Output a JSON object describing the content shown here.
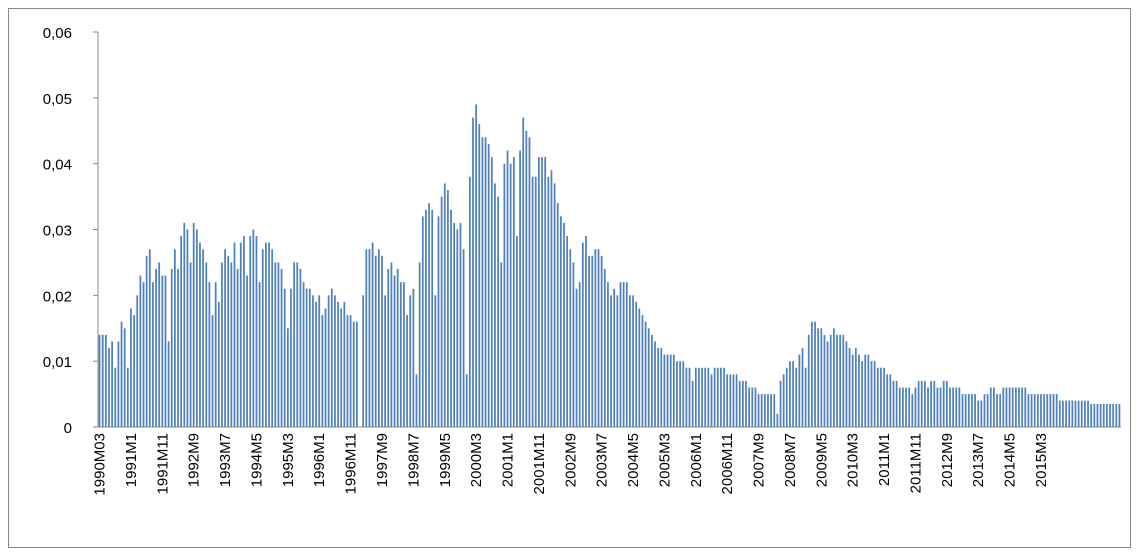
{
  "chart_data": {
    "type": "bar",
    "color": "#4f81bd",
    "grid": false,
    "ylim": [
      0,
      0.06
    ],
    "yticks": [
      0,
      {
        "value": 0.01,
        "label": "0,01"
      },
      {
        "value": 0.02,
        "label": "0,02"
      },
      {
        "value": 0.03,
        "label": "0,03"
      },
      {
        "value": 0.04,
        "label": "0,04"
      },
      {
        "value": 0.05,
        "label": "0,05"
      },
      {
        "value": 0.06,
        "label": "0,06"
      }
    ],
    "categories": [
      "1990M03",
      null,
      null,
      null,
      null,
      null,
      null,
      null,
      null,
      null,
      "1991M1",
      null,
      null,
      null,
      null,
      null,
      null,
      null,
      null,
      null,
      "1991M11",
      null,
      null,
      null,
      null,
      null,
      null,
      null,
      null,
      null,
      "1992M9",
      null,
      null,
      null,
      null,
      null,
      null,
      null,
      null,
      null,
      "1993M7",
      null,
      null,
      null,
      null,
      null,
      null,
      null,
      null,
      null,
      "1994M5",
      null,
      null,
      null,
      null,
      null,
      null,
      null,
      null,
      null,
      "1995M3",
      null,
      null,
      null,
      null,
      null,
      null,
      null,
      null,
      null,
      "1996M1",
      null,
      null,
      null,
      null,
      null,
      null,
      null,
      null,
      null,
      "1996M11",
      null,
      null,
      null,
      null,
      null,
      null,
      null,
      null,
      null,
      "1997M9",
      null,
      null,
      null,
      null,
      null,
      null,
      null,
      null,
      null,
      "1998M7",
      null,
      null,
      null,
      null,
      null,
      null,
      null,
      null,
      null,
      "1999M5",
      null,
      null,
      null,
      null,
      null,
      null,
      null,
      null,
      null,
      "2000M3",
      null,
      null,
      null,
      null,
      null,
      null,
      null,
      null,
      null,
      "2001M1",
      null,
      null,
      null,
      null,
      null,
      null,
      null,
      null,
      null,
      "2001M11",
      null,
      null,
      null,
      null,
      null,
      null,
      null,
      null,
      null,
      "2002M9",
      null,
      null,
      null,
      null,
      null,
      null,
      null,
      null,
      null,
      "2003M7",
      null,
      null,
      null,
      null,
      null,
      null,
      null,
      null,
      null,
      "2004M5",
      null,
      null,
      null,
      null,
      null,
      null,
      null,
      null,
      null,
      "2005M3",
      null,
      null,
      null,
      null,
      null,
      null,
      null,
      null,
      null,
      "2006M1",
      null,
      null,
      null,
      null,
      null,
      null,
      null,
      null,
      null,
      "2006M11",
      null,
      null,
      null,
      null,
      null,
      null,
      null,
      null,
      null,
      "2007M9",
      null,
      null,
      null,
      null,
      null,
      null,
      null,
      null,
      null,
      "2008M7",
      null,
      null,
      null,
      null,
      null,
      null,
      null,
      null,
      null,
      "2009M5",
      null,
      null,
      null,
      null,
      null,
      null,
      null,
      null,
      null,
      "2010M3",
      null,
      null,
      null,
      null,
      null,
      null,
      null,
      null,
      null,
      "2011M1",
      null,
      null,
      null,
      null,
      null,
      null,
      null,
      null,
      null,
      "2011M11",
      null,
      null,
      null,
      null,
      null,
      null,
      null,
      null,
      null,
      "2012M9",
      null,
      null,
      null,
      null,
      null,
      null,
      null,
      null,
      null,
      "2013M7",
      null,
      null,
      null,
      null,
      null,
      null,
      null,
      null,
      null,
      "2014M5",
      null,
      null,
      null,
      null,
      null,
      null,
      null,
      null,
      null,
      "2015M3",
      null,
      null,
      null,
      null,
      null,
      null,
      null,
      null,
      null,
      null,
      null,
      null,
      null,
      null,
      null,
      null,
      null,
      null,
      null,
      null,
      null,
      null,
      null,
      null,
      null
    ],
    "values": [
      0.014,
      0.014,
      0.014,
      0.012,
      0.013,
      0.009,
      0.013,
      0.016,
      0.015,
      0.009,
      0.018,
      0.017,
      0.02,
      0.023,
      0.022,
      0.026,
      0.027,
      0.022,
      0.024,
      0.025,
      0.023,
      0.023,
      0.013,
      0.024,
      0.027,
      0.024,
      0.029,
      0.031,
      0.03,
      0.025,
      0.031,
      0.03,
      0.028,
      0.027,
      0.025,
      0.022,
      0.017,
      0.022,
      0.019,
      0.025,
      0.027,
      0.026,
      0.025,
      0.028,
      0.024,
      0.028,
      0.029,
      0.023,
      0.029,
      0.03,
      0.029,
      0.022,
      0.027,
      0.028,
      0.028,
      0.027,
      0.025,
      0.025,
      0.024,
      0.021,
      0.015,
      0.021,
      0.025,
      0.025,
      0.024,
      0.022,
      0.021,
      0.021,
      0.02,
      0.019,
      0.02,
      0.017,
      0.018,
      0.02,
      0.021,
      0.02,
      0.019,
      0.018,
      0.019,
      0.017,
      0.017,
      0.016,
      0.016,
      0.0,
      0.02,
      0.027,
      0.027,
      0.028,
      0.026,
      0.027,
      0.026,
      0.02,
      0.024,
      0.025,
      0.023,
      0.024,
      0.022,
      0.022,
      0.017,
      0.02,
      0.021,
      0.008,
      0.025,
      0.032,
      0.033,
      0.034,
      0.033,
      0.02,
      0.032,
      0.035,
      0.037,
      0.036,
      0.033,
      0.031,
      0.03,
      0.031,
      0.027,
      0.008,
      0.038,
      0.047,
      0.049,
      0.046,
      0.044,
      0.044,
      0.043,
      0.041,
      0.037,
      0.035,
      0.025,
      0.04,
      0.042,
      0.04,
      0.041,
      0.029,
      0.042,
      0.047,
      0.045,
      0.044,
      0.038,
      0.038,
      0.041,
      0.041,
      0.041,
      0.038,
      0.039,
      0.037,
      0.034,
      0.032,
      0.031,
      0.029,
      0.027,
      0.025,
      0.021,
      0.022,
      0.028,
      0.029,
      0.026,
      0.026,
      0.027,
      0.027,
      0.026,
      0.024,
      0.022,
      0.02,
      0.021,
      0.02,
      0.022,
      0.022,
      0.022,
      0.02,
      0.02,
      0.019,
      0.018,
      0.017,
      0.016,
      0.015,
      0.014,
      0.013,
      0.012,
      0.012,
      0.011,
      0.011,
      0.011,
      0.011,
      0.01,
      0.01,
      0.01,
      0.009,
      0.009,
      0.007,
      0.009,
      0.009,
      0.009,
      0.009,
      0.009,
      0.008,
      0.009,
      0.009,
      0.009,
      0.009,
      0.008,
      0.008,
      0.008,
      0.008,
      0.007,
      0.007,
      0.007,
      0.006,
      0.006,
      0.006,
      0.005,
      0.005,
      0.005,
      0.005,
      0.005,
      0.005,
      0.002,
      0.007,
      0.008,
      0.009,
      0.01,
      0.01,
      0.009,
      0.011,
      0.012,
      0.009,
      0.014,
      0.016,
      0.016,
      0.015,
      0.015,
      0.014,
      0.013,
      0.014,
      0.015,
      0.014,
      0.014,
      0.014,
      0.013,
      0.012,
      0.011,
      0.012,
      0.011,
      0.01,
      0.011,
      0.011,
      0.01,
      0.01,
      0.009,
      0.009,
      0.009,
      0.008,
      0.008,
      0.007,
      0.007,
      0.006,
      0.006,
      0.006,
      0.006,
      0.005,
      0.006,
      0.007,
      0.007,
      0.007,
      0.006,
      0.007,
      0.007,
      0.006,
      0.006,
      0.007,
      0.007,
      0.006,
      0.006,
      0.006,
      0.006,
      0.005,
      0.005,
      0.005,
      0.005,
      0.005,
      0.004,
      0.004,
      0.005,
      0.005,
      0.006,
      0.006,
      0.005,
      0.005,
      0.006,
      0.006,
      0.006,
      0.006,
      0.006,
      0.006,
      0.006,
      0.006,
      0.005,
      0.005,
      0.005,
      0.005,
      0.005,
      0.005,
      0.005,
      0.005,
      0.005,
      0.005,
      0.004,
      0.004,
      0.004,
      0.004,
      0.004,
      0.004,
      0.004,
      0.004,
      0.004,
      0.004,
      0.0035,
      0.0035,
      0.0035,
      0.0035,
      0.0035,
      0.0035,
      0.0035,
      0.0035,
      0.0035,
      0.0035
    ]
  }
}
